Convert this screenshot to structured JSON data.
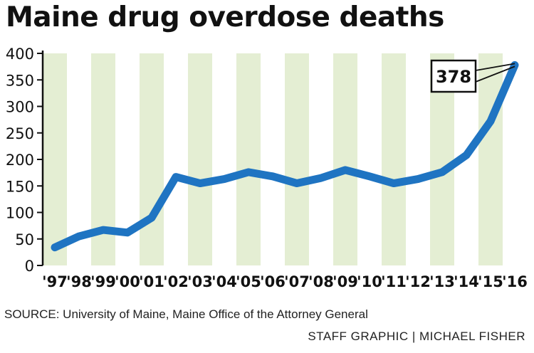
{
  "chart_data": {
    "type": "line",
    "title": "Maine drug overdose deaths",
    "xlabel": "",
    "ylabel": "",
    "ylim": [
      0,
      400
    ],
    "y_ticks": [
      "0",
      "50",
      "100",
      "150",
      "200",
      "250",
      "300",
      "350",
      "400"
    ],
    "categories": [
      "'97",
      "'98",
      "'99",
      "'00",
      "'01",
      "'02",
      "'03",
      "'04",
      "'05",
      "'06",
      "'07",
      "'08",
      "'09",
      "'10",
      "'11",
      "'12",
      "'13",
      "'14",
      "'15",
      "'16"
    ],
    "values": [
      34,
      55,
      67,
      62,
      90,
      167,
      155,
      163,
      176,
      168,
      155,
      165,
      180,
      168,
      155,
      163,
      176,
      208,
      272,
      378
    ],
    "annotation": {
      "label": "378",
      "category": "'16",
      "value": 378
    },
    "grid": false,
    "background_bands": "alternating",
    "line_color": "#1f74c2",
    "band_color": "#e4eed3"
  },
  "source": "SOURCE: University of Maine, Maine Office of the Attorney General",
  "credit": "STAFF GRAPHIC | MICHAEL FISHER"
}
